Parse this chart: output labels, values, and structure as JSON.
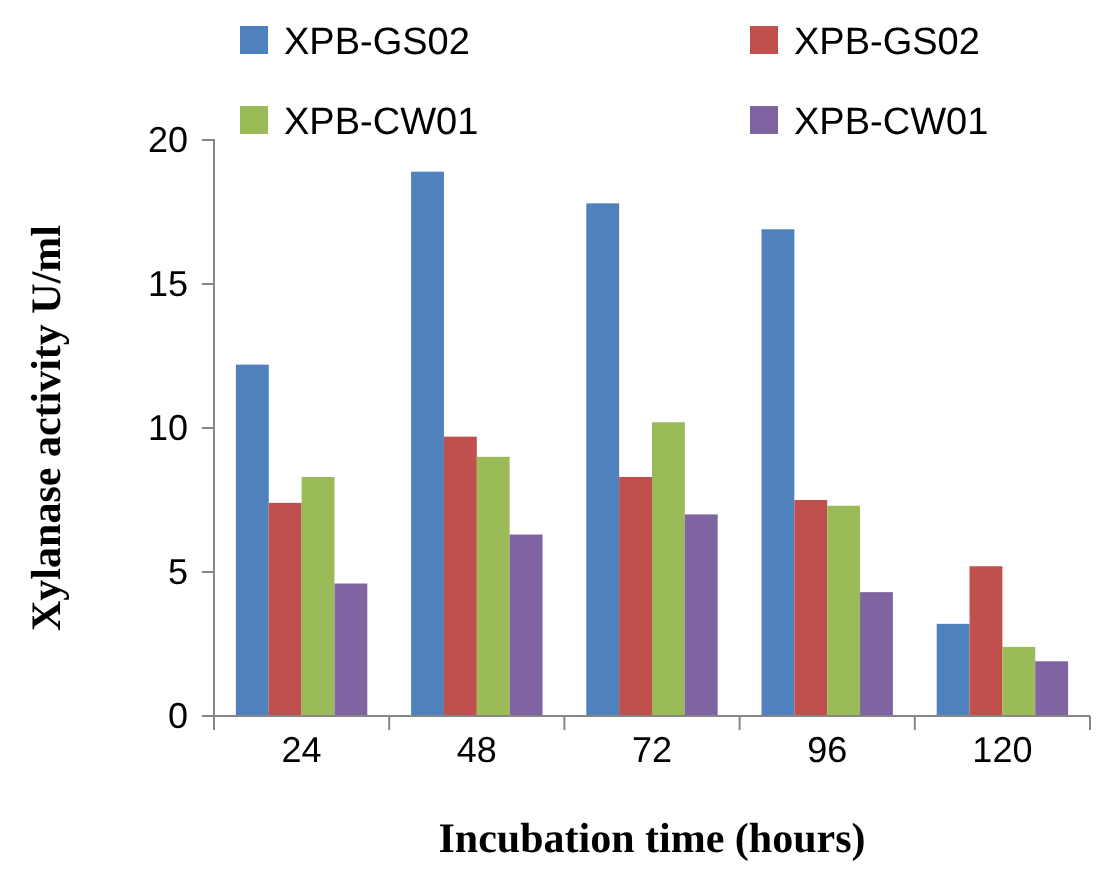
{
  "chart_data": {
    "type": "bar",
    "xlabel": "Incubation time (hours)",
    "ylabel": "Xylanase activity U/ml",
    "categories": [
      "24",
      "48",
      "72",
      "96",
      "120"
    ],
    "series": [
      {
        "name": "XPB-GS02",
        "color": "#4f81bd",
        "values": [
          12.2,
          18.9,
          17.8,
          16.9,
          3.2
        ]
      },
      {
        "name": "XPB-GS02",
        "color": "#c0504d",
        "values": [
          7.4,
          9.7,
          8.3,
          7.5,
          5.2
        ]
      },
      {
        "name": "XPB-CW01",
        "color": "#9bbb59",
        "values": [
          8.3,
          9.0,
          10.2,
          7.3,
          2.4
        ]
      },
      {
        "name": "XPB-CW01",
        "color": "#8064a2",
        "values": [
          4.6,
          6.3,
          7.0,
          4.3,
          1.9
        ]
      }
    ],
    "ylim": [
      0,
      20
    ],
    "yticks": [
      0,
      5,
      10,
      15,
      20
    ],
    "grid": false,
    "legend": "top"
  }
}
